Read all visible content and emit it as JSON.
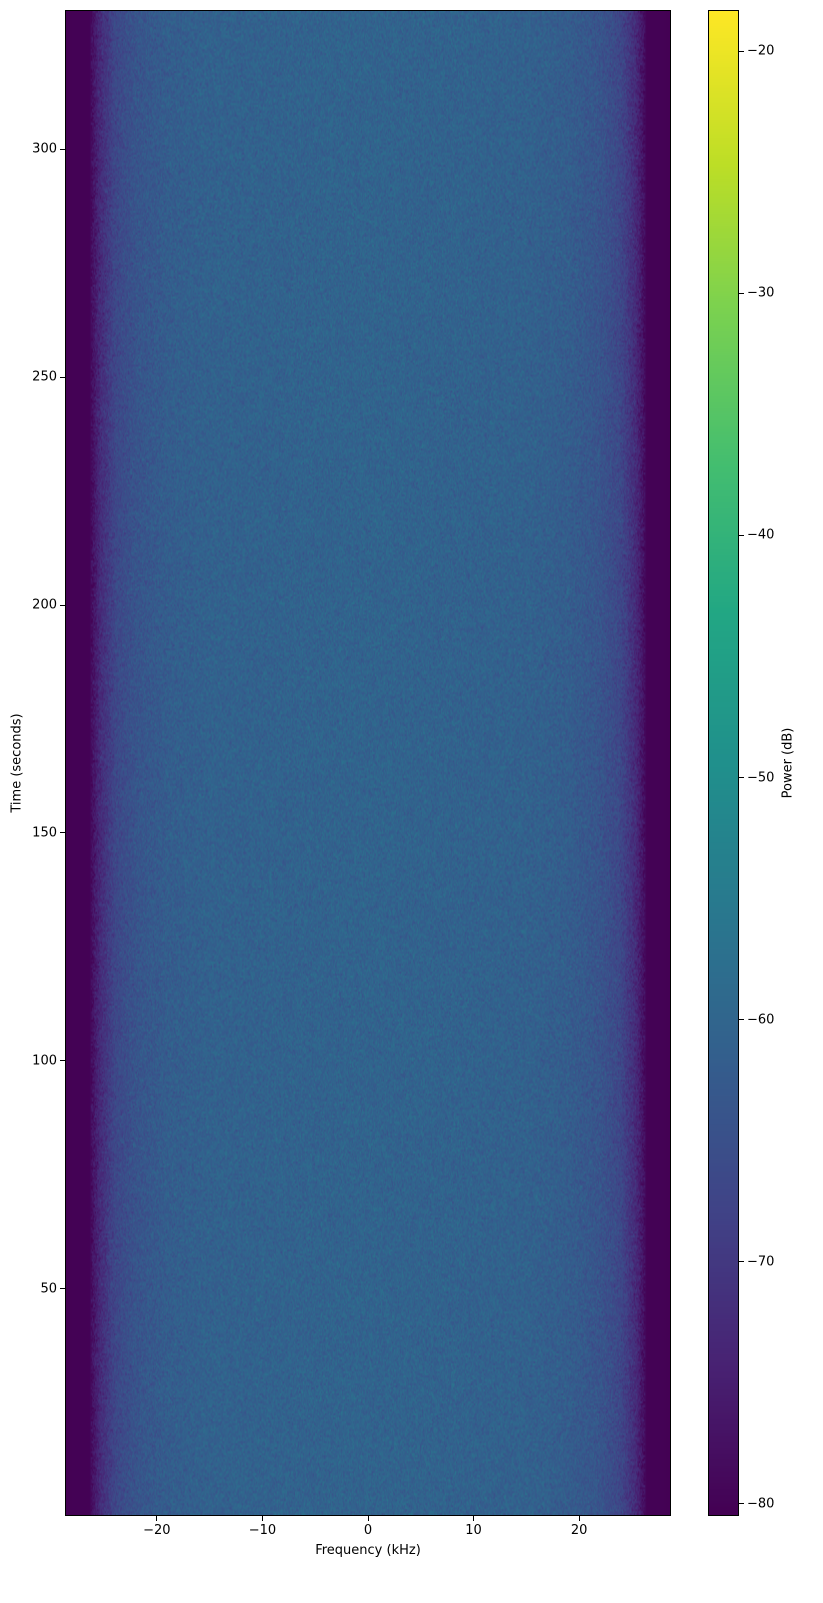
{
  "chart_data": {
    "type": "heatmap",
    "title": "",
    "xlabel": "Frequency (kHz)",
    "ylabel": "Time (seconds)",
    "colorbar_label": "Power (dB)",
    "colormap": "viridis",
    "xlim": [
      -28.7,
      28.7
    ],
    "ylim": [
      0.2,
      330.5
    ],
    "clim": [
      -80.5,
      -18.3
    ],
    "xticks": [
      -20,
      -10,
      0,
      10,
      20
    ],
    "xtick_labels": [
      "−20",
      "−10",
      "0",
      "10",
      "20"
    ],
    "yticks": [
      50,
      100,
      150,
      200,
      250,
      300
    ],
    "ytick_labels": [
      "50",
      "100",
      "150",
      "200",
      "250",
      "300"
    ],
    "cticks": [
      -20,
      -30,
      -40,
      -50,
      -60,
      -70,
      -80
    ],
    "ctick_labels": [
      "−20",
      "−30",
      "−40",
      "−50",
      "−60",
      "−70",
      "−80"
    ],
    "mean_power_profile": {
      "frequency_khz": [
        -28.7,
        -26.5,
        -25.5,
        -24,
        -22,
        -19,
        -15,
        0,
        15,
        19,
        22,
        24,
        25.5,
        26.5,
        28.7
      ],
      "power_db": [
        -80.5,
        -80,
        -73,
        -67,
        -64,
        -62,
        -61,
        -60.5,
        -61,
        -62,
        -64,
        -67,
        -73,
        -80,
        -80.5
      ]
    },
    "noise_std_db": 2.5,
    "grid": false
  }
}
